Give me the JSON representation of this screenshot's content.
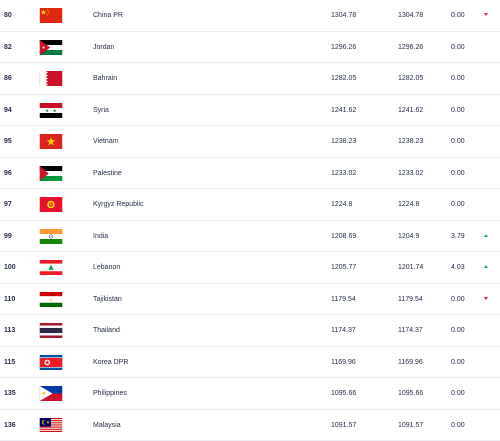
{
  "colors": {
    "text": "#1f2a44",
    "row_border": "#ececf2",
    "up": "#13b06b",
    "down": "#e0243a"
  },
  "rows": [
    {
      "rank": "80",
      "team": "China PR",
      "flag": "china-flag-icon",
      "total_points": "1304.78",
      "previous_points": "1304.78",
      "diff": "0.00",
      "trend": "down"
    },
    {
      "rank": "82",
      "team": "Jordan",
      "flag": "jordan-flag-icon",
      "total_points": "1296.26",
      "previous_points": "1296.26",
      "diff": "0.00",
      "trend": "none"
    },
    {
      "rank": "86",
      "team": "Bahrain",
      "flag": "bahrain-flag-icon",
      "total_points": "1282.05",
      "previous_points": "1282.05",
      "diff": "0.00",
      "trend": "none"
    },
    {
      "rank": "94",
      "team": "Syria",
      "flag": "syria-flag-icon",
      "total_points": "1241.62",
      "previous_points": "1241.62",
      "diff": "0.00",
      "trend": "none"
    },
    {
      "rank": "95",
      "team": "Vietnam",
      "flag": "vietnam-flag-icon",
      "total_points": "1238.23",
      "previous_points": "1238.23",
      "diff": "0.00",
      "trend": "none"
    },
    {
      "rank": "96",
      "team": "Palestine",
      "flag": "palestine-flag-icon",
      "total_points": "1233.02",
      "previous_points": "1233.02",
      "diff": "0.00",
      "trend": "none"
    },
    {
      "rank": "97",
      "team": "Kyrgyz Republic",
      "flag": "kyrgyzstan-flag-icon",
      "total_points": "1224.8",
      "previous_points": "1224.8",
      "diff": "0.00",
      "trend": "none"
    },
    {
      "rank": "99",
      "team": "India",
      "flag": "india-flag-icon",
      "total_points": "1208.69",
      "previous_points": "1204.9",
      "diff": "3.79",
      "trend": "up"
    },
    {
      "rank": "100",
      "team": "Lebanon",
      "flag": "lebanon-flag-icon",
      "total_points": "1205.77",
      "previous_points": "1201.74",
      "diff": "4.03",
      "trend": "up"
    },
    {
      "rank": "110",
      "team": "Tajikistan",
      "flag": "tajikistan-flag-icon",
      "total_points": "1179.54",
      "previous_points": "1179.54",
      "diff": "0.00",
      "trend": "down"
    },
    {
      "rank": "113",
      "team": "Thailand",
      "flag": "thailand-flag-icon",
      "total_points": "1174.37",
      "previous_points": "1174.37",
      "diff": "0.00",
      "trend": "none"
    },
    {
      "rank": "115",
      "team": "Korea DPR",
      "flag": "north-korea-flag-icon",
      "total_points": "1169.96",
      "previous_points": "1169.96",
      "diff": "0.00",
      "trend": "none"
    },
    {
      "rank": "135",
      "team": "Philippines",
      "flag": "philippines-flag-icon",
      "total_points": "1095.66",
      "previous_points": "1095.66",
      "diff": "0.00",
      "trend": "none"
    },
    {
      "rank": "136",
      "team": "Malaysia",
      "flag": "malaysia-flag-icon",
      "total_points": "1091.57",
      "previous_points": "1091.57",
      "diff": "0.00",
      "trend": "none"
    }
  ]
}
